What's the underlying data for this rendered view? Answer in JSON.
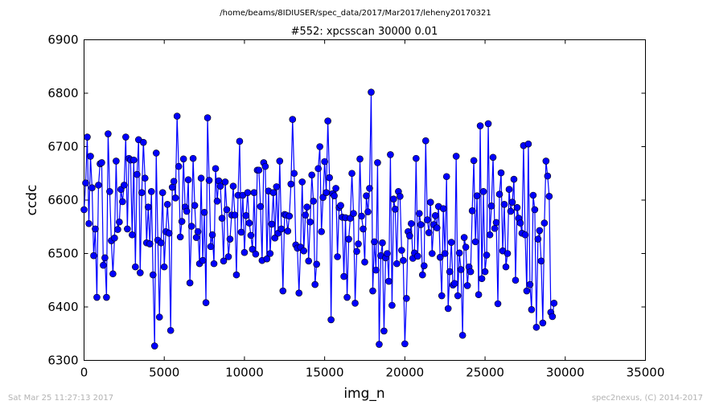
{
  "chart_data": {
    "type": "line",
    "suptitle": "/home/beams/8IDIUSER/spec_data/2017/Mar2017/leheny20170321",
    "title": "#552: xpcsscan 30000 0.01",
    "xlabel": "img_n",
    "ylabel": "ccdc",
    "xlim": [
      0,
      35000
    ],
    "ylim": [
      6300,
      6900
    ],
    "xticks": [
      0,
      5000,
      10000,
      15000,
      20000,
      25000,
      30000,
      35000
    ],
    "yticks": [
      6300,
      6400,
      6500,
      6600,
      6700,
      6800,
      6900
    ],
    "grid": false,
    "series_color": "#0000ff",
    "marker": "circle",
    "x_start": 0,
    "x_step": 100,
    "values": [
      6582,
      6632,
      6718,
      6556,
      6682,
      6623,
      6496,
      6546,
      6418,
      6628,
      6668,
      6670,
      6478,
      6492,
      6418,
      6724,
      6616,
      6524,
      6462,
      6529,
      6673,
      6545,
      6559,
      6620,
      6597,
      6628,
      6718,
      6546,
      6678,
      6675,
      6535,
      6675,
      6475,
      6648,
      6713,
      6464,
      6614,
      6708,
      6641,
      6520,
      6587,
      6518,
      6616,
      6460,
      6327,
      6688,
      6525,
      6381,
      6520,
      6614,
      6475,
      6541,
      6592,
      6538,
      6356,
      6624,
      6635,
      6604,
      6757,
      6663,
      6531,
      6560,
      6677,
      6587,
      6579,
      6638,
      6445,
      6551,
      6678,
      6590,
      6530,
      6541,
      6481,
      6641,
      6487,
      6577,
      6408,
      6754,
      6637,
      6513,
      6535,
      6481,
      6659,
      6598,
      6636,
      6626,
      6566,
      6486,
      6634,
      6582,
      6494,
      6527,
      6572,
      6626,
      6572,
      6460,
      6609,
      6710,
      6540,
      6609,
      6502,
      6571,
      6614,
      6557,
      6534,
      6508,
      6614,
      6499,
      6656,
      6656,
      6588,
      6487,
      6670,
      6663,
      6490,
      6617,
      6500,
      6555,
      6614,
      6529,
      6625,
      6538,
      6673,
      6546,
      6430,
      6573,
      6572,
      6542,
      6570,
      6630,
      6751,
      6650,
      6516,
      6510,
      6426,
      6512,
      6634,
      6505,
      6572,
      6587,
      6486,
      6559,
      6647,
      6598,
      6442,
      6480,
      6659,
      6700,
      6541,
      6605,
      6672,
      6614,
      6748,
      6642,
      6376,
      6612,
      6608,
      6622,
      6494,
      6586,
      6590,
      6568,
      6457,
      6567,
      6418,
      6527,
      6566,
      6650,
      6575,
      6407,
      6504,
      6518,
      6677,
      6570,
      6546,
      6484,
      6608,
      6578,
      6622,
      6802,
      6430,
      6522,
      6469,
      6670,
      6330,
      6496,
      6520,
      6355,
      6492,
      6500,
      6448,
      6685,
      6403,
      6602,
      6583,
      6481,
      6616,
      6607,
      6506,
      6487,
      6331,
      6416,
      6541,
      6533,
      6556,
      6491,
      6501,
      6678,
      6495,
      6575,
      6554,
      6460,
      6477,
      6711,
      6563,
      6539,
      6596,
      6500,
      6554,
      6571,
      6548,
      6588,
      6493,
      6421,
      6584,
      6500,
      6644,
      6397,
      6466,
      6521,
      6441,
      6444,
      6682,
      6421,
      6501,
      6470,
      6347,
      6530,
      6512,
      6440,
      6475,
      6466,
      6580,
      6674,
      6522,
      6608,
      6423,
      6739,
      6453,
      6616,
      6466,
      6497,
      6743,
      6535,
      6589,
      6680,
      6547,
      6558,
      6406,
      6611,
      6651,
      6505,
      6592,
      6475,
      6500,
      6620,
      6579,
      6596,
      6639,
      6450,
      6586,
      6566,
      6557,
      6538,
      6702,
      6535,
      6430,
      6705,
      6442,
      6395,
      6609,
      6582,
      6362,
      6527,
      6543,
      6486,
      6370,
      6557,
      6673,
      6645,
      6607,
      6390,
      6382,
      6407
    ]
  },
  "footer": {
    "left": "Sat Mar 25 11:27:13 2017",
    "right": "spec2nexus, (C) 2014-2017"
  }
}
